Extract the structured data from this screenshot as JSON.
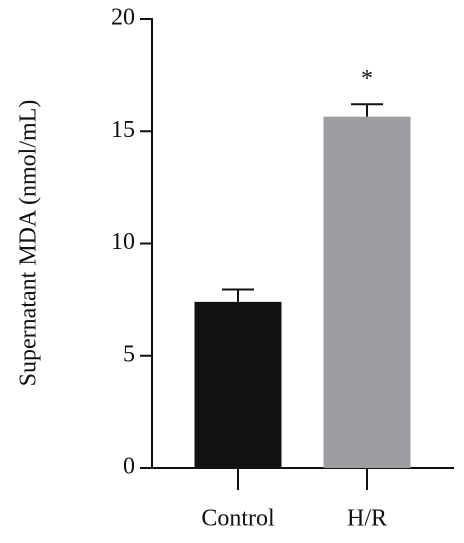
{
  "chart_data": {
    "type": "bar",
    "y_label": "Supernatant MDA (nmol/mL)",
    "categories": [
      "Control",
      "H/R"
    ],
    "values": [
      7.4,
      15.65
    ],
    "errors": [
      0.55,
      0.55
    ],
    "colors": [
      "#111111",
      "#9d9ea2"
    ],
    "ylim": [
      0,
      20
    ],
    "yticks": [
      0,
      5,
      10,
      15,
      20
    ],
    "annotations": [
      {
        "text": "*",
        "category": "H/R"
      }
    ]
  }
}
